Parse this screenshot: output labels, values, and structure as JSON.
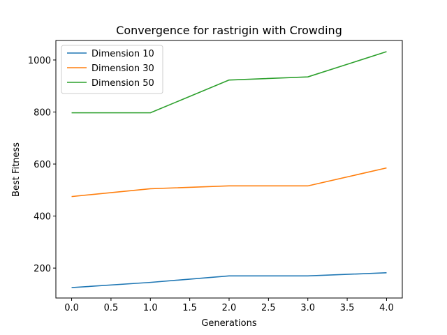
{
  "chart_data": {
    "type": "line",
    "title": "Convergence for rastrigin with Crowding",
    "xlabel": "Generations",
    "ylabel": "Best Fitness",
    "x": [
      0,
      1,
      2,
      3,
      4
    ],
    "xlim": [
      -0.2,
      4.2
    ],
    "ylim": [
      85,
      1075
    ],
    "xticks": [
      0.0,
      0.5,
      1.0,
      1.5,
      2.0,
      2.5,
      3.0,
      3.5,
      4.0
    ],
    "xtick_labels": [
      "0.0",
      "0.5",
      "1.0",
      "1.5",
      "2.0",
      "2.5",
      "3.0",
      "3.5",
      "4.0"
    ],
    "yticks": [
      200,
      400,
      600,
      800,
      1000
    ],
    "ytick_labels": [
      "200",
      "400",
      "600",
      "800",
      "1000"
    ],
    "grid": false,
    "legend_position": "top-left",
    "series": [
      {
        "name": "Dimension 10",
        "color": "#1f77b4",
        "values": [
          125,
          145,
          170,
          170,
          182
        ]
      },
      {
        "name": "Dimension 30",
        "color": "#ff7f0e",
        "values": [
          475,
          505,
          516,
          516,
          585
        ]
      },
      {
        "name": "Dimension 50",
        "color": "#2ca02c",
        "values": [
          797,
          797,
          923,
          935,
          1032
        ]
      }
    ]
  }
}
